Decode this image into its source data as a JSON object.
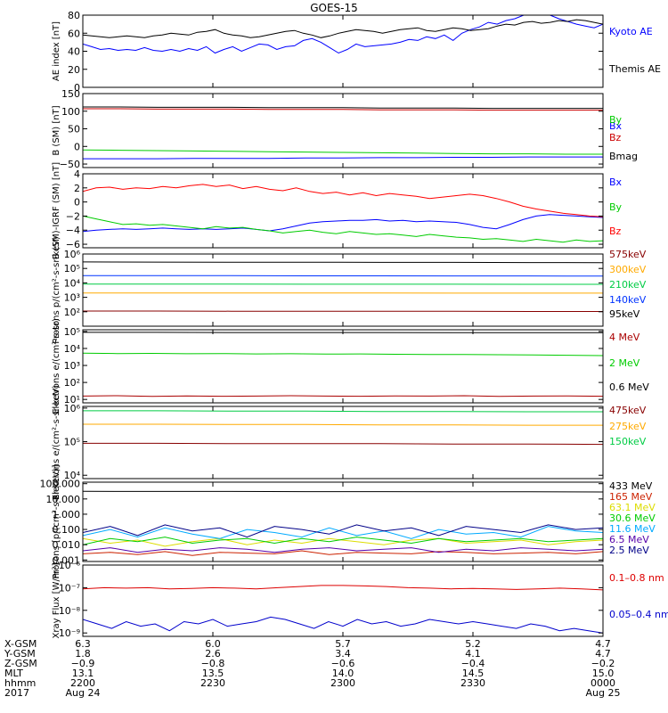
{
  "title": "GOES-15",
  "chart_data": [
    {
      "type": "line",
      "ylabel": "AE index [nT]",
      "ylim": [
        0,
        80
      ],
      "yticks": [
        {
          "v": 0,
          "t": "0"
        },
        {
          "v": 20,
          "t": "20"
        },
        {
          "v": 40,
          "t": "40"
        },
        {
          "v": 60,
          "t": "60"
        },
        {
          "v": 80,
          "t": "80"
        }
      ],
      "series": [
        {
          "name": "Kyoto AE",
          "color": "#0000ff",
          "values": [
            48,
            45,
            42,
            43,
            41,
            42,
            41,
            44,
            41,
            40,
            42,
            40,
            43,
            41,
            45,
            38,
            42,
            45,
            40,
            44,
            48,
            47,
            42,
            45,
            46,
            52,
            54,
            50,
            44,
            38,
            42,
            48,
            45,
            46,
            47,
            48,
            50,
            53,
            52,
            56,
            54,
            58,
            52,
            60,
            64,
            67,
            72,
            70,
            74,
            76,
            80,
            85,
            82,
            80,
            76,
            73,
            70,
            68,
            66,
            70
          ]
        },
        {
          "name": "Themis AE",
          "color": "#000000",
          "values": [
            58,
            57,
            56,
            55,
            56,
            57,
            56,
            55,
            57,
            58,
            60,
            59,
            58,
            61,
            62,
            64,
            60,
            58,
            57,
            55,
            56,
            58,
            60,
            62,
            63,
            60,
            58,
            55,
            57,
            60,
            62,
            64,
            63,
            62,
            60,
            62,
            64,
            65,
            66,
            63,
            62,
            64,
            66,
            65,
            63,
            64,
            65,
            68,
            70,
            69,
            72,
            73,
            71,
            72,
            74,
            73,
            75,
            74,
            72,
            70
          ]
        }
      ]
    },
    {
      "type": "line",
      "ylabel": "B (SM) [nT]",
      "ylim": [
        -60,
        150
      ],
      "yticks": [
        {
          "v": -50,
          "t": "−50"
        },
        {
          "v": 0,
          "t": "0"
        },
        {
          "v": 50,
          "t": "50"
        },
        {
          "v": 100,
          "t": "100"
        },
        {
          "v": 150,
          "t": "150"
        }
      ],
      "series": [
        {
          "name": "Bx",
          "color": "#0000ff",
          "values": [
            -35,
            -35,
            -35,
            -34,
            -34,
            -34,
            -33,
            -33,
            -32,
            -32,
            -31,
            -31,
            -30,
            -30,
            -30
          ]
        },
        {
          "name": "By",
          "color": "#00cc00",
          "values": [
            -10,
            -11,
            -12,
            -13,
            -14,
            -15,
            -16,
            -17,
            -18,
            -19,
            -20,
            -21,
            -21,
            -22,
            -22
          ]
        },
        {
          "name": "Bz",
          "color": "#cc0000",
          "values": [
            107,
            107,
            106,
            106,
            106,
            105,
            105,
            105,
            104,
            104,
            104,
            103,
            103,
            103,
            103
          ]
        },
        {
          "name": "Bmag",
          "color": "#000000",
          "values": [
            112,
            112,
            111,
            111,
            111,
            110,
            110,
            110,
            109,
            109,
            109,
            108,
            108,
            108,
            108
          ]
        }
      ]
    },
    {
      "type": "line",
      "ylabel": "B (SM)-IGRF (SM) [nT]",
      "ylim": [
        -6.5,
        4
      ],
      "yticks": [
        {
          "v": -6,
          "t": "−6"
        },
        {
          "v": -4,
          "t": "−4"
        },
        {
          "v": -2,
          "t": "−2"
        },
        {
          "v": 0,
          "t": "0"
        },
        {
          "v": 2,
          "t": "2"
        },
        {
          "v": 4,
          "t": "4"
        }
      ],
      "series": [
        {
          "name": "Bx",
          "color": "#0000ff",
          "values": [
            -4.2,
            -4.0,
            -3.9,
            -3.8,
            -3.9,
            -3.8,
            -3.7,
            -3.8,
            -3.9,
            -3.8,
            -3.9,
            -3.8,
            -3.7,
            -3.9,
            -4.1,
            -3.8,
            -3.4,
            -3.0,
            -2.8,
            -2.7,
            -2.6,
            -2.6,
            -2.5,
            -2.7,
            -2.6,
            -2.8,
            -2.7,
            -2.8,
            -2.9,
            -3.2,
            -3.6,
            -3.8,
            -3.2,
            -2.5,
            -2.0,
            -1.8,
            -1.9,
            -2.0,
            -2.1,
            -2.2
          ]
        },
        {
          "name": "By",
          "color": "#00cc00",
          "values": [
            -2.0,
            -2.4,
            -2.8,
            -3.2,
            -3.1,
            -3.3,
            -3.2,
            -3.4,
            -3.6,
            -3.8,
            -3.5,
            -3.7,
            -3.6,
            -3.9,
            -4.1,
            -4.4,
            -4.2,
            -4.0,
            -4.3,
            -4.5,
            -4.2,
            -4.4,
            -4.6,
            -4.5,
            -4.7,
            -4.9,
            -4.6,
            -4.8,
            -5.0,
            -5.1,
            -5.3,
            -5.2,
            -5.4,
            -5.6,
            -5.3,
            -5.5,
            -5.7,
            -5.4,
            -5.6,
            -5.5
          ]
        },
        {
          "name": "Bz",
          "color": "#ff0000",
          "values": [
            1.5,
            2.0,
            2.1,
            1.8,
            2.0,
            1.9,
            2.2,
            2.0,
            2.3,
            2.5,
            2.2,
            2.4,
            1.9,
            2.2,
            1.8,
            1.6,
            2.0,
            1.5,
            1.2,
            1.4,
            1.0,
            1.3,
            0.9,
            1.2,
            1.0,
            0.8,
            0.5,
            0.7,
            0.9,
            1.1,
            0.9,
            0.5,
            0.0,
            -0.6,
            -1.0,
            -1.3,
            -1.6,
            -1.8,
            -2.0,
            -2.1
          ]
        }
      ]
    },
    {
      "type": "line",
      "ylabel": "Protons p/(cm²-s-sr-keV)",
      "scale": "log",
      "ylim": [
        1,
        6
      ],
      "yticks": [
        {
          "v": 2,
          "t": "10²"
        },
        {
          "v": 3,
          "t": "10³"
        },
        {
          "v": 4,
          "t": "10⁴"
        },
        {
          "v": 5,
          "t": "10⁵"
        },
        {
          "v": 6,
          "t": "10⁶"
        }
      ],
      "series": [
        {
          "name": "575keV",
          "color": "#880000",
          "values": [
            2.05,
            2.05,
            2.04,
            2.04,
            2.03,
            2.03,
            2.02,
            2.02
          ]
        },
        {
          "name": "300keV",
          "color": "#ffaa00",
          "values": [
            3.3,
            3.3,
            3.3,
            3.3,
            3.3,
            3.29,
            3.29,
            3.29
          ]
        },
        {
          "name": "210keV",
          "color": "#00cc44",
          "values": [
            3.92,
            3.92,
            3.92,
            3.91,
            3.91,
            3.91,
            3.9,
            3.9
          ]
        },
        {
          "name": "140keV",
          "color": "#0033ff",
          "values": [
            4.5,
            4.5,
            4.5,
            4.49,
            4.49,
            4.48,
            4.48,
            4.47
          ]
        },
        {
          "name": "95keV",
          "color": "#000000",
          "values": [
            5.45,
            5.44,
            5.43,
            5.43,
            5.42,
            5.42,
            5.41,
            5.4
          ]
        }
      ]
    },
    {
      "type": "line",
      "ylabel": "Electrons e/(cm²-s-sr)",
      "scale": "log",
      "ylim": [
        0.8,
        5.1
      ],
      "yticks": [
        {
          "v": 1,
          "t": "10¹"
        },
        {
          "v": 2,
          "t": "10²"
        },
        {
          "v": 3,
          "t": "10³"
        },
        {
          "v": 4,
          "t": "10⁴"
        },
        {
          "v": 5,
          "t": "10⁵"
        }
      ],
      "series": [
        {
          "name": "4 MeV",
          "color": "#aa0000",
          "values": [
            1.2,
            1.22,
            1.18,
            1.21,
            1.19,
            1.2,
            1.22,
            1.2,
            1.19,
            1.21,
            1.2,
            1.22,
            1.18,
            1.2,
            1.21,
            1.19
          ]
        },
        {
          "name": "2 MeV",
          "color": "#00cc00",
          "values": [
            3.72,
            3.7,
            3.71,
            3.69,
            3.7,
            3.68,
            3.69,
            3.67,
            3.68,
            3.66,
            3.65,
            3.64,
            3.63,
            3.62,
            3.6,
            3.58
          ]
        },
        {
          "name": "0.6 MeV",
          "color": "#000000",
          "values": [
            4.95,
            4.95,
            4.94,
            4.94,
            4.94,
            4.93,
            4.93,
            4.93
          ]
        }
      ]
    },
    {
      "type": "line",
      "ylabel": "Electrons e/(cm²-s-sr-keV)",
      "scale": "log",
      "ylim": [
        3.9,
        6.05
      ],
      "yticks": [
        {
          "v": 4,
          "t": "10⁴"
        },
        {
          "v": 5,
          "t": "10⁵"
        },
        {
          "v": 6,
          "t": "10⁶"
        }
      ],
      "series": [
        {
          "name": "475keV",
          "color": "#880000",
          "values": [
            4.95,
            4.95,
            4.94,
            4.94,
            4.94,
            4.93,
            4.93,
            4.92
          ]
        },
        {
          "name": "275keV",
          "color": "#ffaa00",
          "values": [
            5.52,
            5.52,
            5.51,
            5.51,
            5.5,
            5.5,
            5.49,
            5.49
          ]
        },
        {
          "name": "150keV",
          "color": "#00cc44",
          "values": [
            5.92,
            5.92,
            5.91,
            5.91,
            5.9,
            5.9,
            5.89,
            5.89
          ]
        }
      ]
    },
    {
      "type": "line",
      "ylabel": "Protons [p/(cm²-s-sr-keV)]",
      "scale": "log",
      "ylim": [
        -3.1,
        2.1
      ],
      "yticks": [
        {
          "v": -3,
          "t": "0.001"
        },
        {
          "v": -2,
          "t": "0.010"
        },
        {
          "v": -1,
          "t": "0.100"
        },
        {
          "v": 0,
          "t": "1.000"
        },
        {
          "v": 1,
          "t": "10.000"
        },
        {
          "v": 2,
          "t": "100.000"
        }
      ],
      "series": [
        {
          "name": "433 MeV",
          "color": "#000000",
          "values": [
            1.5,
            1.49,
            1.49,
            1.48,
            1.48,
            1.47,
            1.47,
            1.46
          ]
        },
        {
          "name": "165 MeV",
          "color": "#cc2200",
          "values": [
            -2.6,
            -2.5,
            -2.65,
            -2.45,
            -2.7,
            -2.5,
            -2.55,
            -2.6,
            -2.4,
            -2.65,
            -2.5,
            -2.55,
            -2.6,
            -2.45,
            -2.5,
            -2.6,
            -2.55,
            -2.5,
            -2.6,
            -2.45
          ]
        },
        {
          "name": "63.1 MeV",
          "color": "#dddd00",
          "values": [
            -1.6,
            -1.9,
            -1.7,
            -2.1,
            -1.8,
            -1.6,
            -2.0,
            -1.7,
            -1.9,
            -1.6,
            -1.8,
            -2.0,
            -1.7,
            -1.6,
            -1.9,
            -1.8,
            -1.7,
            -2.0,
            -1.8,
            -1.7
          ]
        },
        {
          "name": "30.6 MeV",
          "color": "#00cc00",
          "values": [
            -2.0,
            -1.6,
            -1.8,
            -1.5,
            -1.9,
            -1.7,
            -1.6,
            -1.9,
            -1.6,
            -1.8,
            -1.5,
            -1.7,
            -1.9,
            -1.6,
            -1.8,
            -1.7,
            -1.6,
            -1.8,
            -1.7,
            -1.6
          ]
        },
        {
          "name": "11.6 MeV",
          "color": "#00aaff",
          "values": [
            -1.4,
            -1.0,
            -1.5,
            -0.9,
            -1.3,
            -1.6,
            -1.0,
            -1.2,
            -1.5,
            -0.9,
            -1.4,
            -1.1,
            -1.6,
            -1.0,
            -1.3,
            -1.2,
            -1.5,
            -0.8,
            -1.1,
            -1.2
          ]
        },
        {
          "name": "6.5 MeV",
          "color": "#5500aa",
          "values": [
            -2.4,
            -2.2,
            -2.5,
            -2.3,
            -2.4,
            -2.2,
            -2.3,
            -2.5,
            -2.3,
            -2.2,
            -2.4,
            -2.3,
            -2.2,
            -2.5,
            -2.3,
            -2.4,
            -2.2,
            -2.3,
            -2.4,
            -2.3
          ]
        },
        {
          "name": "2.5 MeV",
          "color": "#000088",
          "values": [
            -1.2,
            -0.8,
            -1.4,
            -0.7,
            -1.1,
            -0.9,
            -1.5,
            -0.8,
            -1.0,
            -1.3,
            -0.7,
            -1.1,
            -0.9,
            -1.4,
            -0.8,
            -1.0,
            -1.2,
            -0.7,
            -1.0,
            -0.9
          ]
        }
      ]
    },
    {
      "type": "line",
      "ylabel": "Xray Flux [W/m²]",
      "scale": "log",
      "ylim": [
        -9.15,
        -6
      ],
      "yticks": [
        {
          "v": -9,
          "t": "10⁻⁹"
        },
        {
          "v": -8,
          "t": "10⁻⁸"
        },
        {
          "v": -7,
          "t": "10⁻⁷"
        },
        {
          "v": -6,
          "t": "10⁻⁶"
        }
      ],
      "series": [
        {
          "name": "0.1–0.8 nm",
          "color": "#dd0000",
          "values": [
            -7.05,
            -7.0,
            -7.02,
            -7.0,
            -7.05,
            -7.03,
            -7.0,
            -7.02,
            -7.05,
            -7.0,
            -6.95,
            -6.9,
            -6.9,
            -6.92,
            -6.95,
            -7.0,
            -7.02,
            -7.05,
            -7.03,
            -7.05,
            -7.08,
            -7.05,
            -7.02,
            -7.05,
            -7.1
          ]
        },
        {
          "name": "0.05–0.4 nm",
          "color": "#0000cc",
          "values": [
            -8.4,
            -8.6,
            -8.8,
            -8.5,
            -8.7,
            -8.6,
            -8.9,
            -8.5,
            -8.6,
            -8.4,
            -8.7,
            -8.6,
            -8.5,
            -8.3,
            -8.4,
            -8.6,
            -8.8,
            -8.5,
            -8.7,
            -8.4,
            -8.6,
            -8.5,
            -8.7,
            -8.6,
            -8.4,
            -8.5,
            -8.6,
            -8.5,
            -8.6,
            -8.7,
            -8.8,
            -8.6,
            -8.7,
            -8.9,
            -8.8,
            -8.9,
            -9.0
          ]
        }
      ]
    }
  ],
  "ephemeris": {
    "labels": [
      "X-GSM",
      "Y-GSM",
      "Z-GSM",
      "MLT",
      "hhmm",
      "2017"
    ],
    "columns": [
      [
        "6.3",
        "1.8",
        "−0.9",
        "13.1",
        "2200",
        "Aug 24"
      ],
      [
        "6.0",
        "2.6",
        "−0.8",
        "13.5",
        "2230",
        ""
      ],
      [
        "5.7",
        "3.4",
        "−0.6",
        "14.0",
        "2300",
        ""
      ],
      [
        "5.2",
        "4.1",
        "−0.4",
        "14.5",
        "2330",
        ""
      ],
      [
        "4.7",
        "4.7",
        "−0.2",
        "15.0",
        "0000",
        "Aug 25"
      ]
    ]
  }
}
